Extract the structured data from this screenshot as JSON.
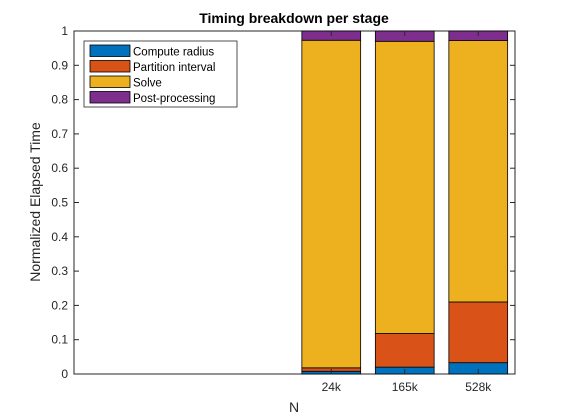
{
  "chart_data": {
    "type": "bar",
    "stacked": true,
    "title": "Timing breakdown per stage",
    "xlabel": "N",
    "ylabel": "Normalized Elapsed Time",
    "ylim": [
      0,
      1
    ],
    "yticks": [
      0,
      0.1,
      0.2,
      0.3,
      0.4,
      0.5,
      0.6,
      0.7,
      0.8,
      0.9,
      1
    ],
    "ytick_labels": [
      "0",
      "0.1",
      "0.2",
      "0.3",
      "0.4",
      "0.5",
      "0.6",
      "0.7",
      "0.8",
      "0.9",
      "1"
    ],
    "categories": [
      "24k",
      "165k",
      "528k"
    ],
    "x_positions": [
      4,
      5,
      6
    ],
    "xlim": [
      0.5,
      6.5
    ],
    "grid": false,
    "legend_position": "top-left",
    "series": [
      {
        "name": "Compute radius",
        "color": "#0072BD",
        "values": [
          0.008,
          0.02,
          0.033
        ]
      },
      {
        "name": "Partition interval",
        "color": "#D95319",
        "values": [
          0.01,
          0.098,
          0.177
        ]
      },
      {
        "name": "Solve",
        "color": "#EDB120",
        "values": [
          0.955,
          0.852,
          0.762
        ]
      },
      {
        "name": "Post-processing",
        "color": "#7E2F8E",
        "values": [
          0.027,
          0.03,
          0.028
        ]
      }
    ]
  }
}
